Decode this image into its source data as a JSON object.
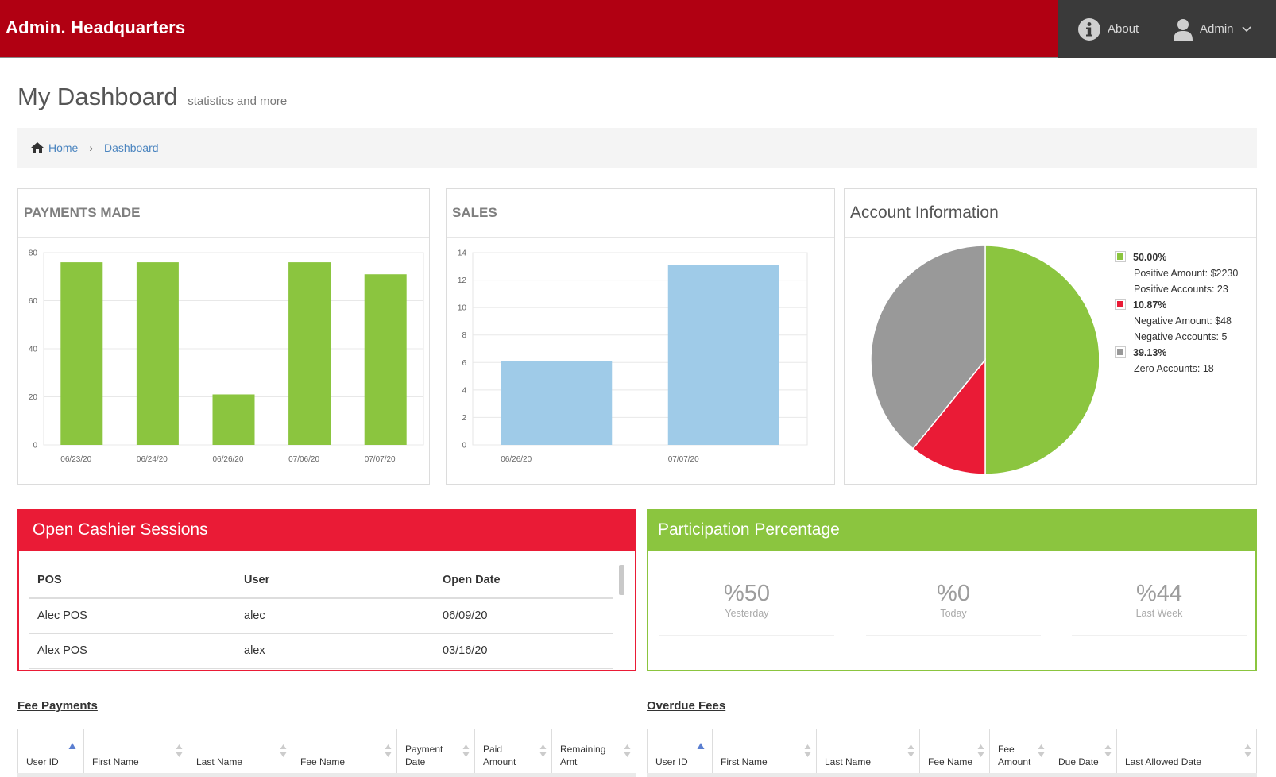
{
  "app": {
    "title": "Admin. Headquarters"
  },
  "nav": {
    "about_label": "About",
    "user_label": "Admin"
  },
  "page": {
    "title": "My Dashboard",
    "subtitle": "statistics and more"
  },
  "breadcrumb": {
    "home": "Home",
    "current": "Dashboard"
  },
  "colors": {
    "header_red": "#b10012",
    "nav_dark": "#3a3a3a",
    "accent_red": "#ea1b36",
    "accent_green": "#8bc53f",
    "sales_blue": "#9fcbe8",
    "zero_gray": "#999999"
  },
  "payments": {
    "title": "PAYMENTS MADE",
    "chart_data": {
      "type": "bar",
      "categories": [
        "06/23/20",
        "06/24/20",
        "06/26/20",
        "07/06/20",
        "07/07/20"
      ],
      "values": [
        76,
        76,
        21,
        76,
        71
      ],
      "ylim": [
        0,
        80
      ],
      "yticks": [
        0,
        20,
        40,
        60,
        80
      ],
      "color": "#8bc53f",
      "grid": true
    }
  },
  "sales": {
    "title": "SALES",
    "chart_data": {
      "type": "bar",
      "categories": [
        "06/26/20",
        "07/07/20"
      ],
      "values": [
        6.1,
        13.1
      ],
      "ylim": [
        0,
        14
      ],
      "yticks": [
        0,
        2,
        4,
        6,
        8,
        10,
        12,
        14
      ],
      "color": "#9fcbe8",
      "grid": true
    }
  },
  "account": {
    "title": "Account Information",
    "chart_data": {
      "type": "pie",
      "slices": [
        {
          "label": "50.00%",
          "value": 50.0,
          "color": "#8bc53f",
          "lines": [
            "Positive Amount: $2230",
            "Positive Accounts: 23"
          ]
        },
        {
          "label": "10.87%",
          "value": 10.87,
          "color": "#ea1b36",
          "lines": [
            "Negative Amount: $48",
            "Negative Accounts: 5"
          ]
        },
        {
          "label": "39.13%",
          "value": 39.13,
          "color": "#999999",
          "lines": [
            "Zero Accounts: 18"
          ]
        }
      ],
      "legend": "right"
    }
  },
  "sessions": {
    "title": "Open Cashier Sessions",
    "columns": [
      "POS",
      "User",
      "Open Date"
    ],
    "rows": [
      [
        "Alec POS",
        "alec",
        "06/09/20"
      ],
      [
        "Alex POS",
        "alex",
        "03/16/20"
      ]
    ]
  },
  "participation": {
    "title": "Participation Percentage",
    "stats": [
      {
        "value": "%50",
        "label": "Yesterday"
      },
      {
        "value": "%0",
        "label": "Today"
      },
      {
        "value": "%44",
        "label": "Last Week"
      }
    ]
  },
  "fee_payments": {
    "title": "Fee Payments",
    "columns": [
      {
        "label": "User ID",
        "sorted": "asc"
      },
      {
        "label": "First Name"
      },
      {
        "label": "Last Name"
      },
      {
        "label": "Fee Name"
      },
      {
        "label": "Payment\nDate"
      },
      {
        "label": "Paid\nAmount"
      },
      {
        "label": "Remaining\nAmt"
      }
    ]
  },
  "overdue_fees": {
    "title": "Overdue Fees",
    "columns": [
      {
        "label": "User ID",
        "sorted": "asc"
      },
      {
        "label": "First Name"
      },
      {
        "label": "Last Name"
      },
      {
        "label": "Fee Name"
      },
      {
        "label": "Fee\nAmount"
      },
      {
        "label": "Due Date"
      },
      {
        "label": "Last Allowed Date"
      }
    ]
  }
}
